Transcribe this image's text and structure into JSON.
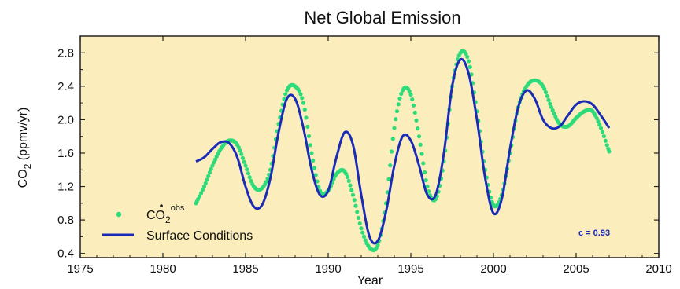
{
  "chart_data": {
    "type": "line",
    "title": "Net Global Emission",
    "xlabel": "Year",
    "ylabel_main": "CO",
    "ylabel_sub": "2",
    "ylabel_units": " (ppmv/yr)",
    "xlim": [
      1975,
      2010
    ],
    "ylim": [
      0.35,
      3.0
    ],
    "xticks": [
      1975,
      1980,
      1985,
      1990,
      1995,
      2000,
      2005,
      2010
    ],
    "yticks": [
      0.4,
      0.8,
      1.2,
      1.6,
      2.0,
      2.4,
      2.8
    ],
    "ytick_labels": [
      "0.4",
      "0.8",
      "1.2",
      "1.6",
      "2.0",
      "2.4",
      "2.8"
    ],
    "background": "#fbeebc",
    "annotation": {
      "text": "c = 0.93",
      "color": "#1a2bb8"
    },
    "legend": {
      "placement": "bottom-left",
      "entries": [
        {
          "series": 0,
          "label_main": "CO",
          "label_sub": "2",
          "label_sup": "obs"
        },
        {
          "series": 1,
          "label_main": "Surface Conditions"
        }
      ]
    },
    "series": [
      {
        "style": "dotted",
        "color": "#2edb7a",
        "points": [
          [
            1982.0,
            1.0
          ],
          [
            1982.5,
            1.2
          ],
          [
            1983.0,
            1.45
          ],
          [
            1983.5,
            1.65
          ],
          [
            1984.0,
            1.75
          ],
          [
            1984.5,
            1.7
          ],
          [
            1985.0,
            1.45
          ],
          [
            1985.5,
            1.2
          ],
          [
            1986.0,
            1.18
          ],
          [
            1986.5,
            1.4
          ],
          [
            1987.0,
            1.95
          ],
          [
            1987.5,
            2.35
          ],
          [
            1988.0,
            2.4
          ],
          [
            1988.5,
            2.2
          ],
          [
            1989.0,
            1.6
          ],
          [
            1989.5,
            1.15
          ],
          [
            1990.0,
            1.15
          ],
          [
            1990.5,
            1.35
          ],
          [
            1991.0,
            1.38
          ],
          [
            1991.5,
            1.1
          ],
          [
            1992.0,
            0.7
          ],
          [
            1992.5,
            0.47
          ],
          [
            1993.0,
            0.5
          ],
          [
            1993.5,
            1.0
          ],
          [
            1994.0,
            1.9
          ],
          [
            1994.5,
            2.35
          ],
          [
            1995.0,
            2.3
          ],
          [
            1995.5,
            1.8
          ],
          [
            1996.0,
            1.2
          ],
          [
            1996.5,
            1.05
          ],
          [
            1997.0,
            1.5
          ],
          [
            1997.5,
            2.4
          ],
          [
            1998.0,
            2.8
          ],
          [
            1998.5,
            2.7
          ],
          [
            1999.0,
            2.1
          ],
          [
            1999.5,
            1.4
          ],
          [
            2000.0,
            0.98
          ],
          [
            2000.5,
            1.1
          ],
          [
            2001.0,
            1.6
          ],
          [
            2001.5,
            2.15
          ],
          [
            2002.0,
            2.4
          ],
          [
            2002.5,
            2.47
          ],
          [
            2003.0,
            2.4
          ],
          [
            2003.5,
            2.15
          ],
          [
            2004.0,
            1.95
          ],
          [
            2004.5,
            1.92
          ],
          [
            2005.0,
            2.02
          ],
          [
            2005.5,
            2.1
          ],
          [
            2006.0,
            2.1
          ],
          [
            2006.5,
            1.9
          ],
          [
            2007.0,
            1.62
          ]
        ]
      },
      {
        "style": "solid",
        "color": "#1a2bb8",
        "points": [
          [
            1982.0,
            1.5
          ],
          [
            1982.5,
            1.55
          ],
          [
            1983.0,
            1.65
          ],
          [
            1983.5,
            1.73
          ],
          [
            1984.0,
            1.72
          ],
          [
            1984.5,
            1.55
          ],
          [
            1985.0,
            1.2
          ],
          [
            1985.5,
            0.96
          ],
          [
            1986.0,
            0.98
          ],
          [
            1986.5,
            1.3
          ],
          [
            1987.0,
            1.85
          ],
          [
            1987.5,
            2.25
          ],
          [
            1988.0,
            2.25
          ],
          [
            1988.5,
            1.9
          ],
          [
            1989.0,
            1.4
          ],
          [
            1989.5,
            1.1
          ],
          [
            1990.0,
            1.15
          ],
          [
            1990.5,
            1.55
          ],
          [
            1991.0,
            1.85
          ],
          [
            1991.5,
            1.7
          ],
          [
            1992.0,
            1.1
          ],
          [
            1992.5,
            0.6
          ],
          [
            1993.0,
            0.55
          ],
          [
            1993.5,
            0.9
          ],
          [
            1994.0,
            1.45
          ],
          [
            1994.5,
            1.8
          ],
          [
            1995.0,
            1.75
          ],
          [
            1995.5,
            1.45
          ],
          [
            1996.0,
            1.1
          ],
          [
            1996.5,
            1.1
          ],
          [
            1997.0,
            1.6
          ],
          [
            1997.5,
            2.4
          ],
          [
            1998.0,
            2.72
          ],
          [
            1998.5,
            2.55
          ],
          [
            1999.0,
            2.0
          ],
          [
            1999.5,
            1.3
          ],
          [
            2000.0,
            0.88
          ],
          [
            2000.5,
            1.05
          ],
          [
            2001.0,
            1.65
          ],
          [
            2001.5,
            2.15
          ],
          [
            2002.0,
            2.35
          ],
          [
            2002.5,
            2.25
          ],
          [
            2003.0,
            2.0
          ],
          [
            2003.5,
            1.9
          ],
          [
            2004.0,
            1.92
          ],
          [
            2004.5,
            2.05
          ],
          [
            2005.0,
            2.18
          ],
          [
            2005.5,
            2.22
          ],
          [
            2006.0,
            2.18
          ],
          [
            2006.5,
            2.05
          ],
          [
            2007.0,
            1.9
          ]
        ]
      }
    ]
  }
}
